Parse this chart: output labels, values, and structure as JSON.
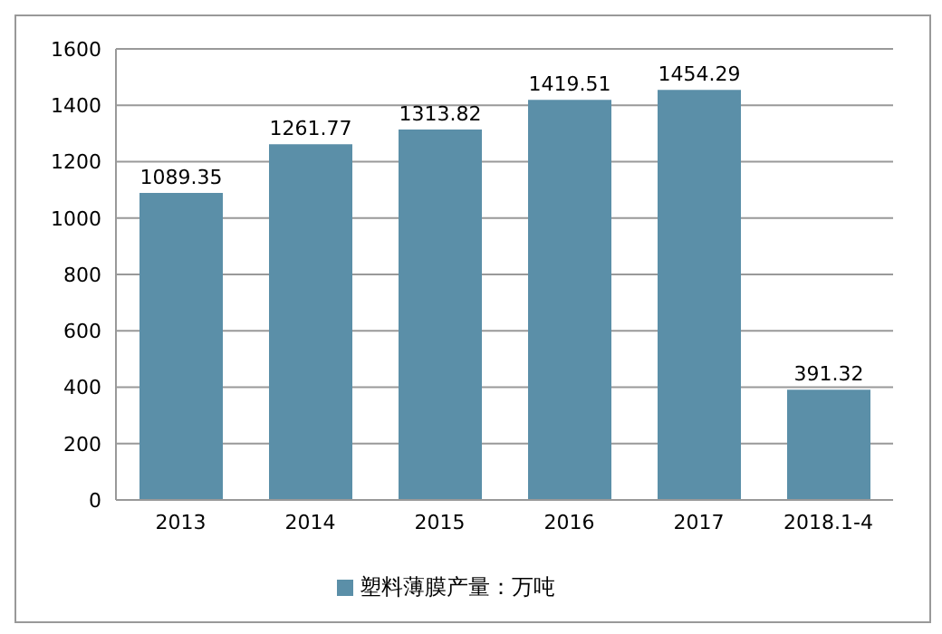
{
  "chart_data": {
    "type": "bar",
    "categories": [
      "2013",
      "2014",
      "2015",
      "2016",
      "2017",
      "2018.1-4"
    ],
    "series": [
      {
        "name": "塑料薄膜产量：万吨",
        "color": "#5b8fa8",
        "values": [
          1089.35,
          1261.77,
          1313.82,
          1419.51,
          1454.29,
          391.32
        ]
      }
    ],
    "ylim": [
      0,
      1600
    ],
    "yticks": [
      0,
      200,
      400,
      600,
      800,
      1000,
      1200,
      1400,
      1600
    ],
    "grid": "y",
    "legend": "bottom",
    "data_labels": true
  }
}
